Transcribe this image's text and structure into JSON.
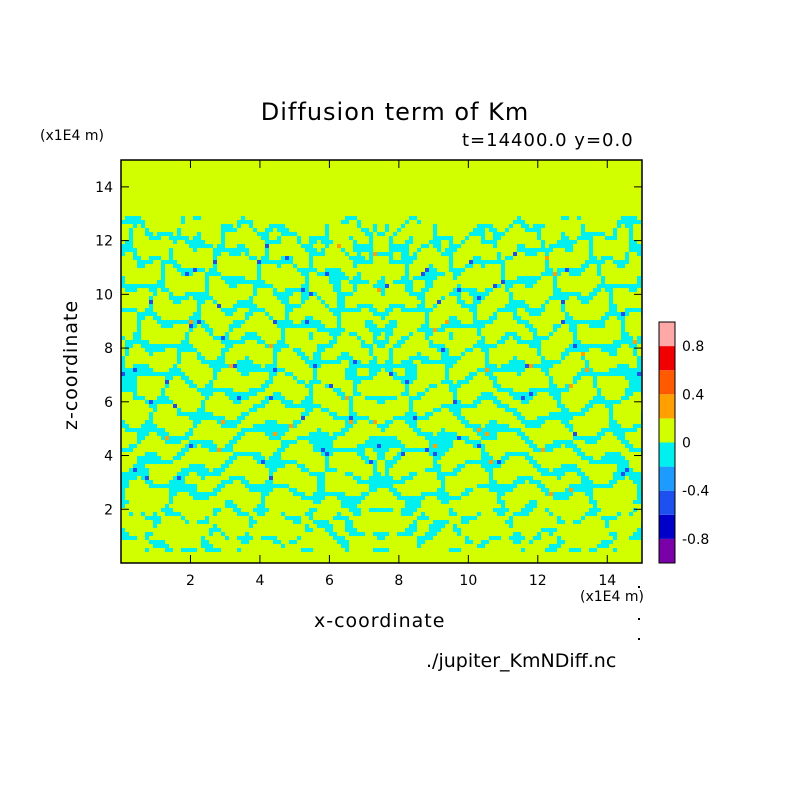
{
  "chart_data": {
    "type": "heatmap",
    "title": "Diffusion term of Km",
    "subtitle": "t=14400.0 y=0.0",
    "xlabel": "x-coordinate",
    "ylabel": "z-coordinate",
    "x_unit": "(x1E4 m)",
    "z_unit": "(x1E4 m)",
    "xlim": [
      0,
      15
    ],
    "ylim": [
      0,
      15
    ],
    "x_ticks": [
      "2",
      "4",
      "6",
      "8",
      "10",
      "12",
      "14"
    ],
    "y_ticks": [
      "2",
      "4",
      "6",
      "8",
      "10",
      "12",
      "14"
    ],
    "colorbar": {
      "levels": [
        -1.0,
        -0.8,
        -0.6,
        -0.4,
        -0.2,
        0,
        0.2,
        0.4,
        0.6,
        0.8,
        1.0
      ],
      "colors": [
        "#7a00a8",
        "#0000c8",
        "#1e50f0",
        "#1e9bff",
        "#00f0f0",
        "#d2ff00",
        "#ffa000",
        "#ff5a00",
        "#f00000",
        "#ffa8a8"
      ],
      "tick_labels": [
        "-0.8",
        "-0.4",
        "0",
        "0.4",
        "0.8"
      ],
      "tick_values": [
        -0.8,
        -0.4,
        0,
        0.4,
        0.8
      ]
    },
    "background_color": "#d2ff00",
    "dominant_negative_color": "#00f0f0",
    "disturbed_layer_z": [
      0.4,
      12.6
    ]
  },
  "source_file": "./jupiter_KmNDiff.nc"
}
